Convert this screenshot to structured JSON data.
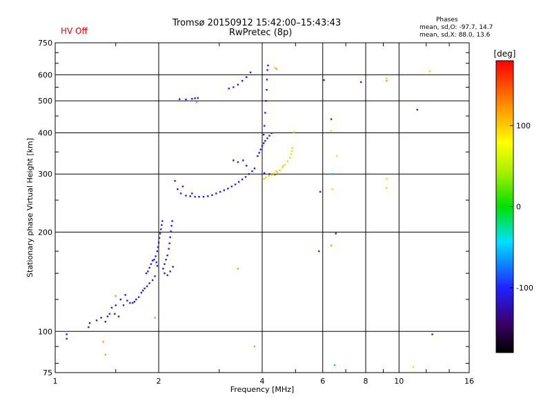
{
  "header": {
    "title": "Tromsø 20150912 15:42:00–15:43:43",
    "subtitle": "RwPretec (8p)",
    "status": "HV Off",
    "status_color": "#e00000",
    "stats_title": "Phases",
    "stats_o": "mean, sd,O: -97.7, 14.7",
    "stats_x": "mean, sd,X:  88.0, 13.6"
  },
  "chart_data": {
    "type": "scatter",
    "title": "Tromsø 20150912 15:42:00–15:43:43",
    "xlabel": "Frequency [MHz]",
    "ylabel": "Stationary phase Virtual Height [km]",
    "xscale": "log",
    "yscale": "log",
    "xlim": [
      1,
      16
    ],
    "ylim": [
      75,
      750
    ],
    "xticks": [
      1,
      2,
      4,
      6,
      8,
      10,
      16
    ],
    "xtick_labels": [
      "1",
      "2",
      "4",
      "6",
      "8",
      "10",
      "16"
    ],
    "yticks": [
      75,
      100,
      200,
      300,
      400,
      500,
      600,
      750
    ],
    "ytick_labels": [
      "75",
      "100",
      "200",
      "300",
      "400",
      "500",
      "600",
      "750"
    ],
    "grid": true,
    "colorbar": {
      "label": "[deg]",
      "range": [
        -180,
        180
      ],
      "ticks": [
        100,
        0,
        -100
      ],
      "tick_labels": [
        "100",
        "0",
        "-100"
      ]
    },
    "series": [
      {
        "name": "O-mode (blue)",
        "color": "#1a1aff",
        "points": [
          [
            1.08,
            95
          ],
          [
            1.08,
            98
          ],
          [
            1.25,
            103
          ],
          [
            1.26,
            106
          ],
          [
            1.32,
            108
          ],
          [
            1.36,
            110
          ],
          [
            1.4,
            107
          ],
          [
            1.42,
            111
          ],
          [
            1.44,
            113
          ],
          [
            1.46,
            118
          ],
          [
            1.49,
            113
          ],
          [
            1.53,
            111
          ],
          [
            1.5,
            120
          ],
          [
            1.55,
            125
          ],
          [
            1.58,
            120
          ],
          [
            1.6,
            129
          ],
          [
            1.62,
            124
          ],
          [
            1.65,
            122
          ],
          [
            1.68,
            122
          ],
          [
            1.7,
            123
          ],
          [
            1.72,
            125
          ],
          [
            1.75,
            127
          ],
          [
            1.78,
            131
          ],
          [
            1.8,
            133
          ],
          [
            1.82,
            135
          ],
          [
            1.85,
            137
          ],
          [
            1.88,
            140
          ],
          [
            1.92,
            143
          ],
          [
            1.95,
            147
          ],
          [
            1.84,
            150
          ],
          [
            1.86,
            152
          ],
          [
            1.88,
            156
          ],
          [
            1.9,
            160
          ],
          [
            1.92,
            164
          ],
          [
            1.94,
            165
          ],
          [
            1.96,
            169
          ],
          [
            1.98,
            175
          ],
          [
            1.99,
            180
          ],
          [
            2.0,
            186
          ],
          [
            2.01,
            192
          ],
          [
            2.02,
            198
          ],
          [
            2.03,
            204
          ],
          [
            2.04,
            210
          ],
          [
            2.05,
            216
          ],
          [
            1.97,
            162
          ],
          [
            1.98,
            158
          ],
          [
            2.06,
            155
          ],
          [
            2.08,
            160
          ],
          [
            2.1,
            165
          ],
          [
            2.12,
            170
          ],
          [
            2.14,
            178
          ],
          [
            2.15,
            185
          ],
          [
            2.16,
            193
          ],
          [
            2.17,
            201
          ],
          [
            2.18,
            209
          ],
          [
            2.19,
            216
          ],
          [
            2.08,
            150
          ],
          [
            2.12,
            148
          ],
          [
            2.16,
            152
          ],
          [
            2.2,
            157
          ],
          [
            2.23,
            286
          ],
          [
            2.27,
            270
          ],
          [
            2.32,
            262
          ],
          [
            2.4,
            258
          ],
          [
            2.47,
            257
          ],
          [
            2.55,
            256
          ],
          [
            2.62,
            256
          ],
          [
            2.7,
            256
          ],
          [
            2.78,
            257
          ],
          [
            2.86,
            259
          ],
          [
            2.94,
            262
          ],
          [
            3.02,
            265
          ],
          [
            3.1,
            268
          ],
          [
            3.18,
            271
          ],
          [
            3.26,
            275
          ],
          [
            3.34,
            279
          ],
          [
            3.42,
            284
          ],
          [
            3.5,
            289
          ],
          [
            3.58,
            294
          ],
          [
            3.66,
            300
          ],
          [
            3.74,
            306
          ],
          [
            3.8,
            312
          ],
          [
            2.35,
            275
          ],
          [
            2.5,
            262
          ],
          [
            3.6,
            318
          ],
          [
            3.52,
            330
          ],
          [
            3.4,
            326
          ],
          [
            3.3,
            330
          ],
          [
            3.88,
            340
          ],
          [
            3.92,
            348
          ],
          [
            3.96,
            356
          ],
          [
            4.0,
            365
          ],
          [
            4.04,
            372
          ],
          [
            4.08,
            378
          ],
          [
            4.14,
            385
          ],
          [
            4.2,
            392
          ],
          [
            4.26,
            399
          ],
          [
            4.04,
            395
          ],
          [
            4.06,
            420
          ],
          [
            4.08,
            460
          ],
          [
            4.1,
            500
          ],
          [
            4.12,
            540
          ],
          [
            4.13,
            580
          ],
          [
            4.14,
            620
          ],
          [
            4.16,
            640
          ],
          [
            4.06,
            302
          ],
          [
            4.2,
            300
          ],
          [
            4.35,
            299
          ],
          [
            2.3,
            506
          ],
          [
            2.4,
            505
          ],
          [
            2.5,
            507
          ],
          [
            2.55,
            509
          ],
          [
            2.6,
            510
          ],
          [
            3.2,
            545
          ],
          [
            3.3,
            550
          ],
          [
            3.4,
            560
          ],
          [
            3.5,
            575
          ],
          [
            3.6,
            590
          ],
          [
            3.7,
            610
          ],
          [
            5.85,
            175
          ],
          [
            5.9,
            265
          ],
          [
            6.05,
            578
          ],
          [
            6.35,
            440
          ],
          [
            6.4,
            300
          ],
          [
            6.55,
            198
          ],
          [
            7.75,
            570
          ],
          [
            11.3,
            470
          ],
          [
            12.5,
            98
          ]
        ]
      },
      {
        "name": "X-mode (yellow)",
        "color": "#e6d800",
        "points": [
          [
            4.05,
            290
          ],
          [
            4.1,
            293
          ],
          [
            4.18,
            296
          ],
          [
            4.26,
            298
          ],
          [
            4.34,
            301
          ],
          [
            4.42,
            304
          ],
          [
            4.5,
            308
          ],
          [
            4.58,
            314
          ],
          [
            4.66,
            320
          ],
          [
            4.74,
            328
          ],
          [
            4.82,
            336
          ],
          [
            4.86,
            345
          ],
          [
            4.88,
            352
          ],
          [
            4.9,
            360
          ],
          [
            4.4,
            306
          ],
          [
            4.6,
            318
          ],
          [
            4.95,
            402
          ],
          [
            6.6,
            340
          ],
          [
            6.35,
            405
          ],
          [
            6.4,
            270
          ],
          [
            9.2,
            290
          ],
          [
            9.2,
            272
          ],
          [
            9.2,
            585
          ],
          [
            12.3,
            615
          ],
          [
            11.0,
            78
          ],
          [
            4.35,
            630
          ]
        ]
      },
      {
        "name": "X-mode (orange)",
        "color": "#ff9500",
        "points": [
          [
            4.4,
            625
          ],
          [
            9.2,
            575
          ],
          [
            6.35,
            182
          ],
          [
            1.95,
            110
          ],
          [
            1.38,
            93
          ],
          [
            1.4,
            85
          ],
          [
            3.4,
            155
          ],
          [
            3.8,
            90
          ],
          [
            1.5,
            128
          ],
          [
            2.58,
            495
          ]
        ]
      },
      {
        "name": "other (cyan)",
        "color": "#00c8e0",
        "points": [
          [
            6.5,
            79
          ],
          [
            6.4,
            300
          ]
        ]
      }
    ]
  }
}
